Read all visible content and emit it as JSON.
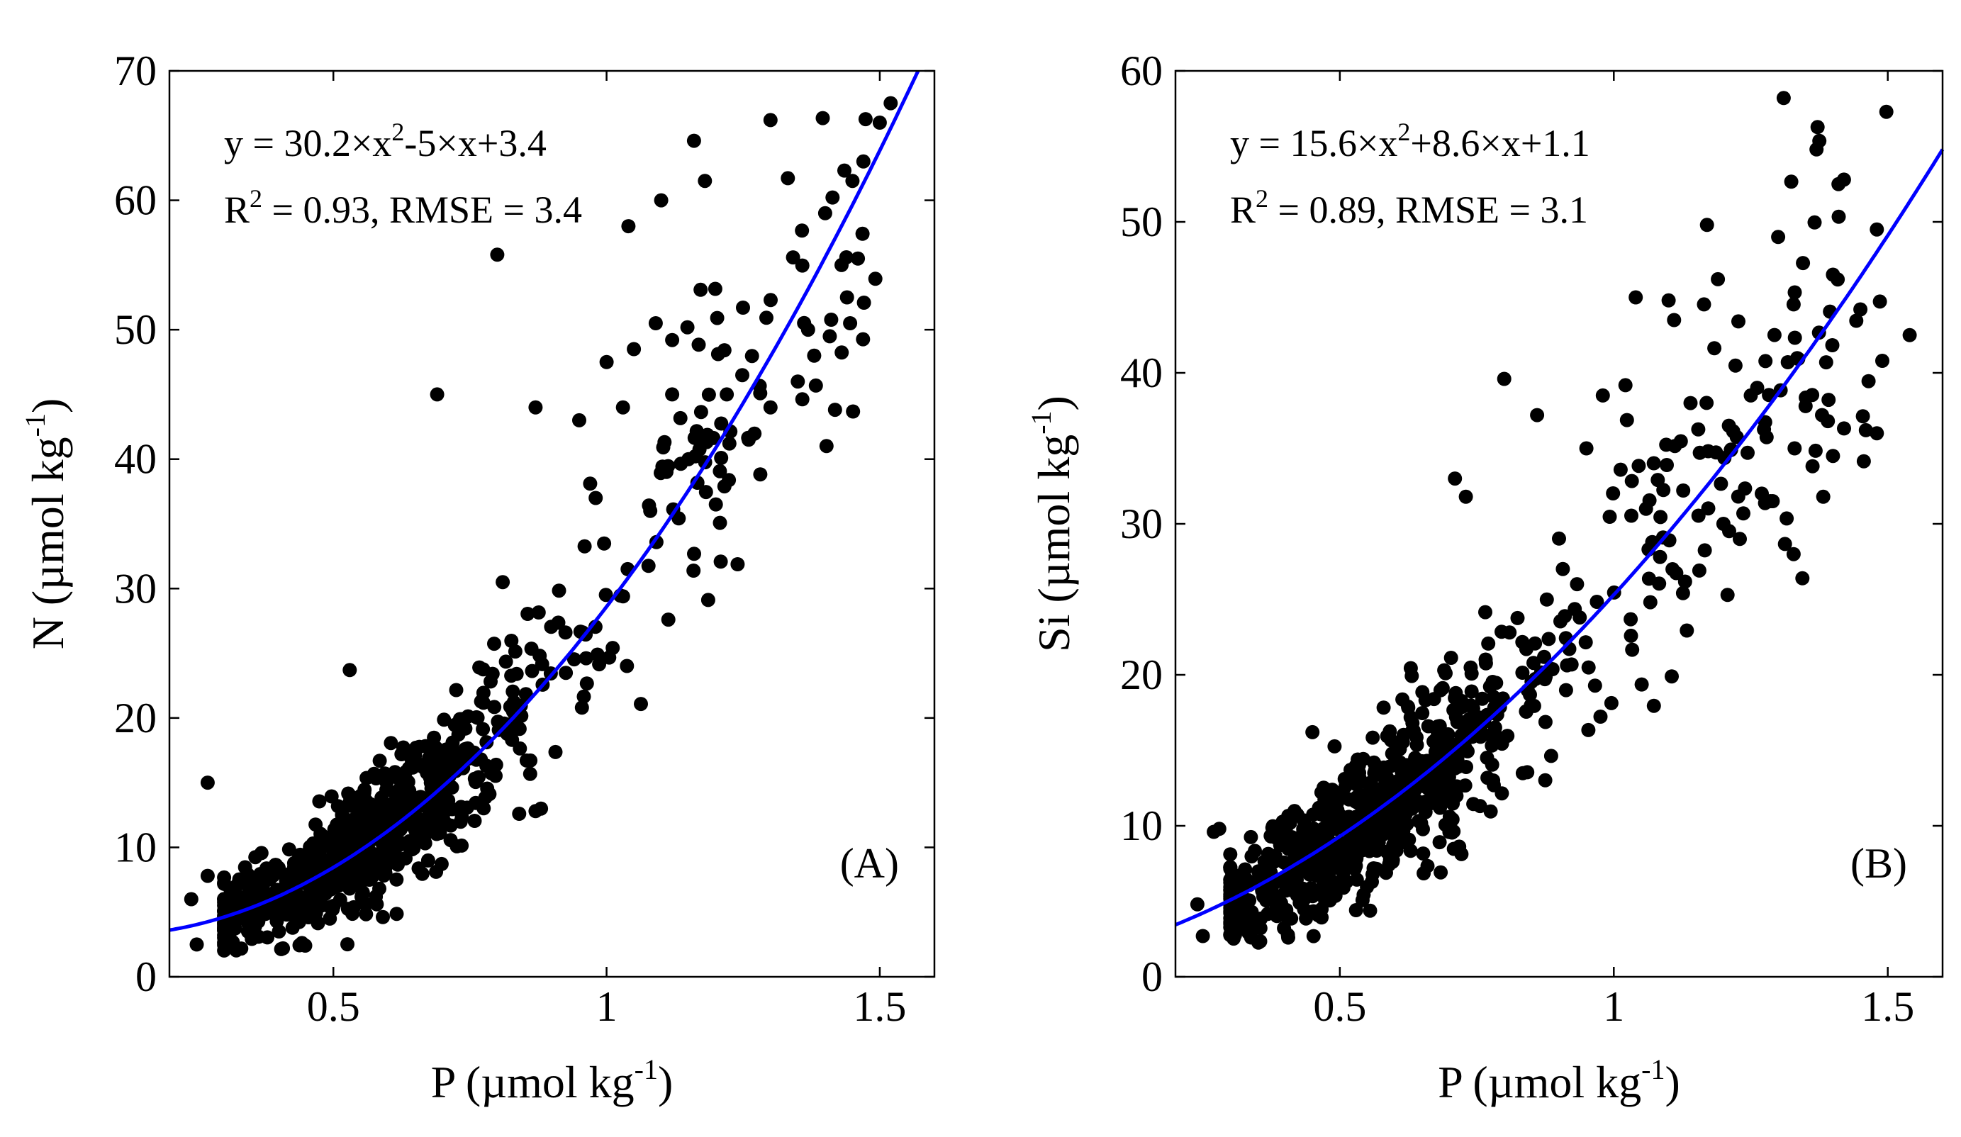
{
  "chart_data": [
    {
      "type": "scatter",
      "panel_label": "(A)",
      "xlabel": "P (µmol kg",
      "xlabel_sup": "-1",
      "xlabel_close": ")",
      "ylabel": "N (µmol kg",
      "ylabel_sup": "-1",
      "ylabel_close": ")",
      "xlim": [
        0.2,
        1.6
      ],
      "ylim": [
        0,
        70
      ],
      "xticks": [
        0.5,
        1,
        1.5
      ],
      "xtick_labels": [
        "0.5",
        "1",
        "1.5"
      ],
      "yticks": [
        0,
        10,
        20,
        30,
        40,
        50,
        60,
        70
      ],
      "ytick_labels": [
        "0",
        "10",
        "20",
        "30",
        "40",
        "50",
        "60",
        "70"
      ],
      "equation": {
        "pre": "y = 30.2×x",
        "sup": "2",
        "post": "-5×x+3.4"
      },
      "stats": {
        "pre": "R",
        "sup": "2",
        "post": " = 0.93, RMSE = 3.4"
      },
      "fit": {
        "a": 30.2,
        "b": -5,
        "c": 3.4,
        "color": "#0000ff"
      },
      "point_color": "#000000",
      "outliers": [
        [
          0.27,
          15
        ],
        [
          0.69,
          45
        ],
        [
          0.8,
          55.8
        ],
        [
          1.04,
          58
        ],
        [
          1.1,
          60
        ],
        [
          1.16,
          64.6
        ],
        [
          1.18,
          61.5
        ],
        [
          1.3,
          66.2
        ],
        [
          1.09,
          50.5
        ],
        [
          1.12,
          49.2
        ],
        [
          0.87,
          44
        ],
        [
          0.95,
          43
        ],
        [
          1.0,
          47.5
        ],
        [
          1.05,
          48.5
        ],
        [
          1.12,
          45
        ],
        [
          0.81,
          30.5
        ],
        [
          0.88,
          13
        ],
        [
          0.87,
          12.8
        ],
        [
          0.84,
          12.6
        ],
        [
          0.53,
          23.7
        ],
        [
          0.25,
          2.5
        ],
        [
          0.24,
          6
        ],
        [
          0.27,
          7.8
        ],
        [
          0.31,
          3
        ],
        [
          1.4,
          59
        ],
        [
          1.45,
          61.5
        ],
        [
          1.47,
          63
        ],
        [
          1.5,
          66
        ],
        [
          1.52,
          67.5
        ],
        [
          1.43,
          55
        ],
        [
          1.46,
          55.5
        ],
        [
          1.44,
          52.5
        ],
        [
          1.38,
          48
        ],
        [
          1.35,
          46
        ],
        [
          1.3,
          44
        ],
        [
          1.22,
          45
        ],
        [
          1.26,
          41.5
        ],
        [
          1.2,
          36.5
        ],
        [
          1.15,
          40
        ],
        [
          1.08,
          36
        ],
        [
          1.03,
          44
        ],
        [
          0.98,
          37
        ]
      ]
    },
    {
      "type": "scatter",
      "panel_label": "(B)",
      "xlabel": "P (µmol kg",
      "xlabel_sup": "-1",
      "xlabel_close": ")",
      "ylabel": "Si (µmol kg",
      "ylabel_sup": "-1",
      "ylabel_close": ")",
      "xlim": [
        0.2,
        1.6
      ],
      "ylim": [
        0,
        60
      ],
      "xticks": [
        0.5,
        1,
        1.5
      ],
      "xtick_labels": [
        "0.5",
        "1",
        "1.5"
      ],
      "yticks": [
        0,
        10,
        20,
        30,
        40,
        50,
        60
      ],
      "ytick_labels": [
        "0",
        "10",
        "20",
        "30",
        "40",
        "50",
        "60"
      ],
      "equation": {
        "pre": "y = 15.6×x",
        "sup": "2",
        "post": "+8.6×x+1.1"
      },
      "stats": {
        "pre": "R",
        "sup": "2",
        "post": " = 0.89, RMSE = 3.1"
      },
      "fit": {
        "a": 15.6,
        "b": 8.6,
        "c": 1.1,
        "color": "#0000ff"
      },
      "point_color": "#000000",
      "outliers": [
        [
          1.31,
          58.2
        ],
        [
          1.37,
          54.8
        ],
        [
          1.41,
          52.5
        ],
        [
          1.42,
          52.8
        ],
        [
          1.3,
          49
        ],
        [
          1.17,
          49.8
        ],
        [
          1.19,
          46.2
        ],
        [
          1.4,
          46.5
        ],
        [
          1.48,
          49.5
        ],
        [
          1.54,
          42.5
        ],
        [
          1.45,
          44.2
        ],
        [
          1.49,
          40.8
        ],
        [
          1.48,
          36
        ],
        [
          1.46,
          36.2
        ],
        [
          1.35,
          37.8
        ],
        [
          1.38,
          37.2
        ],
        [
          1.1,
          44.8
        ],
        [
          1.11,
          43.5
        ],
        [
          1.04,
          45
        ],
        [
          0.8,
          39.6
        ],
        [
          0.86,
          37.2
        ],
        [
          0.71,
          33
        ],
        [
          0.73,
          31.8
        ],
        [
          0.25,
          2.7
        ],
        [
          0.28,
          9.8
        ],
        [
          0.27,
          9.6
        ],
        [
          0.24,
          4.8
        ],
        [
          0.45,
          16.2
        ],
        [
          1.23,
          29
        ],
        [
          1.27,
          32
        ],
        [
          1.29,
          31.5
        ],
        [
          1.2,
          30
        ],
        [
          1.14,
          38
        ],
        [
          1.21,
          36.5
        ],
        [
          1.25,
          38.5
        ],
        [
          1.33,
          35
        ],
        [
          1.4,
          34.5
        ],
        [
          0.98,
          38.5
        ],
        [
          0.95,
          35
        ]
      ]
    }
  ]
}
